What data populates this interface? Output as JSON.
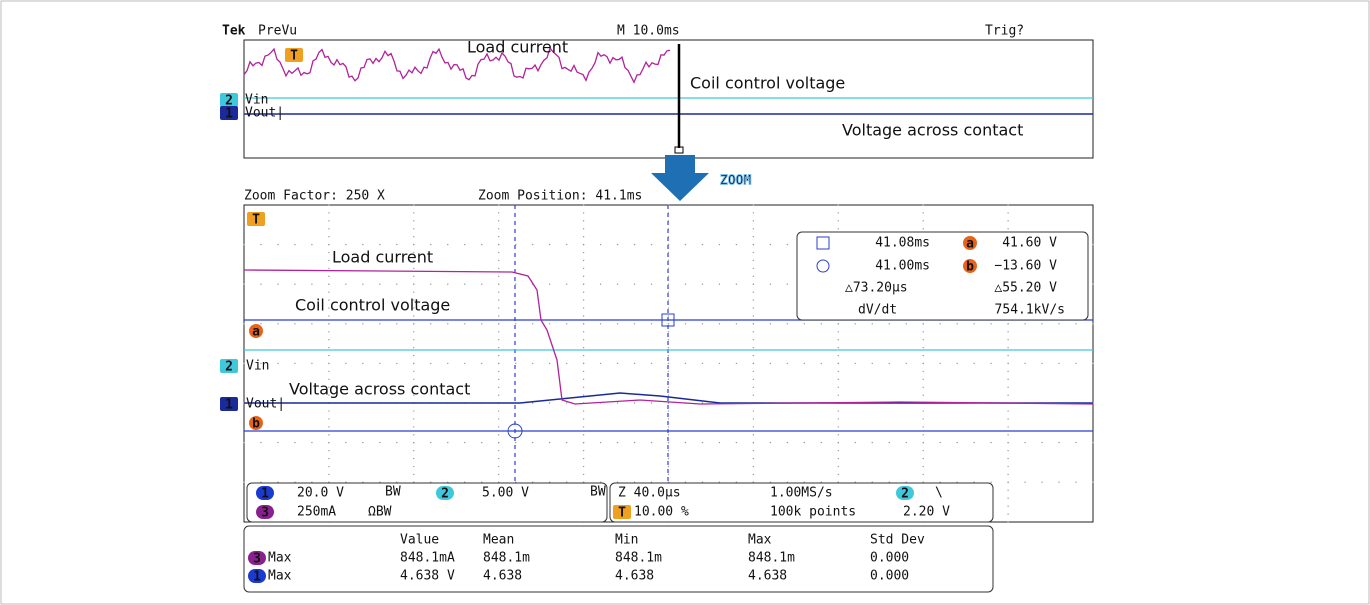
{
  "top": {
    "brand": "Tek",
    "mode": "PreVu",
    "timebase": "M 10.0ms",
    "trigger": "Trig?",
    "trigger_marker": "T",
    "annotations": [
      "Load current",
      "Coil control voltage",
      "Voltage across contact"
    ],
    "channels": [
      {
        "marker": "2",
        "label": "Vin"
      },
      {
        "marker": "1",
        "label": "Vout|"
      }
    ]
  },
  "zoom_label": "ZOOM",
  "zoom": {
    "factor": "Zoom Factor: 250 X",
    "position": "Zoom Position: 41.1ms",
    "trigger_marker": "T",
    "annotations": [
      "Load current",
      "Coil control voltage",
      "Voltage across contact"
    ],
    "channels": [
      {
        "marker": "2",
        "label": "Vin"
      },
      {
        "marker": "1",
        "label": "Vout|"
      }
    ],
    "cursor_markers": [
      "a",
      "b"
    ]
  },
  "cursors": {
    "rows": [
      [
        "41.08ms",
        "a",
        "41.60 V"
      ],
      [
        "41.00ms",
        "b",
        "−13.60 V"
      ],
      [
        "△73.20µs",
        "△55.20 V"
      ],
      [
        "dV/dt",
        "754.1kV/s"
      ]
    ]
  },
  "status": {
    "left": {
      "rows": [
        [
          "1",
          "20.0 V",
          "BW",
          "2",
          "5.00 V",
          "BW"
        ],
        [
          "3",
          "250mA",
          "ΩBW"
        ]
      ]
    },
    "right": {
      "rows": [
        [
          "Z 40.0µs",
          "1.00MS/s",
          "2",
          "\\"
        ],
        [
          "T",
          "10.00 %",
          "100k points",
          "2.20 V"
        ]
      ]
    }
  },
  "measurements": {
    "header": [
      "Value",
      "Mean",
      "Min",
      "Max",
      "Std Dev"
    ],
    "rows": [
      [
        "3",
        "Max",
        "848.1mA",
        "848.1m",
        "848.1m",
        "848.1m",
        "0.000"
      ],
      [
        "1",
        "Max",
        "4.638 V",
        "4.638",
        "4.638",
        "4.638",
        "0.000"
      ]
    ]
  }
}
